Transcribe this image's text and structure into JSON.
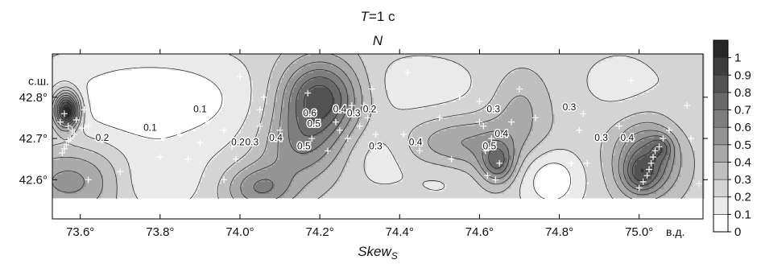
{
  "chart_data": {
    "type": "heatmap",
    "title_italic": "T",
    "title_rest": "=1 c",
    "subtitle": "N",
    "xlabel_main": "Skew",
    "xlabel_sub": "S",
    "x_unit": "в.д.",
    "y_unit": "с.ш.",
    "xlim": [
      73.53,
      75.16
    ],
    "ylim": [
      42.505,
      42.905
    ],
    "x_ticks": [
      73.6,
      73.8,
      74.0,
      74.2,
      74.4,
      74.6,
      74.8,
      75.0
    ],
    "x_tick_labels": [
      "73.6°",
      "73.8°",
      "74.0°",
      "74.2°",
      "74.4°",
      "74.6°",
      "74.8°",
      "75.0°"
    ],
    "y_ticks": [
      42.8,
      42.7,
      42.6
    ],
    "y_tick_labels": [
      "42.8°",
      "42.7°",
      "42.6°"
    ],
    "data_ylim": [
      42.555,
      42.905
    ],
    "colorbar": {
      "ticks": [
        0,
        0.1,
        0.2,
        0.3,
        0.4,
        0.5,
        0.6,
        0.7,
        0.8,
        0.9,
        1
      ],
      "tick_labels": [
        "0",
        "0.1",
        "0.2",
        "0.3",
        "0.4",
        "0.5",
        "0.6",
        "0.7",
        "0.8",
        "0.9",
        "1"
      ],
      "range": [
        0,
        1.1
      ]
    },
    "field": {
      "background": 0.26,
      "features": [
        {
          "x": 73.565,
          "y": 42.77,
          "amp": 0.95,
          "sx": 0.022,
          "sy": 0.03
        },
        {
          "x": 73.585,
          "y": 42.6,
          "amp": 0.3,
          "sx": 0.1,
          "sy": 0.06
        },
        {
          "x": 73.76,
          "y": 42.79,
          "amp": -0.24,
          "sx": 0.2,
          "sy": 0.09
        },
        {
          "x": 73.77,
          "y": 42.595,
          "amp": -0.16,
          "sx": 0.09,
          "sy": 0.055
        },
        {
          "x": 73.86,
          "y": 42.8,
          "amp": -0.05,
          "sx": 0.06,
          "sy": 0.035
        },
        {
          "x": 74.2,
          "y": 42.8,
          "amp": 0.62,
          "sx": 0.07,
          "sy": 0.065
        },
        {
          "x": 74.15,
          "y": 42.68,
          "amp": 0.3,
          "sx": 0.07,
          "sy": 0.06
        },
        {
          "x": 74.05,
          "y": 42.58,
          "amp": 0.34,
          "sx": 0.06,
          "sy": 0.04
        },
        {
          "x": 74.35,
          "y": 42.66,
          "amp": -0.12,
          "sx": 0.06,
          "sy": 0.06
        },
        {
          "x": 74.45,
          "y": 42.83,
          "amp": -0.12,
          "sx": 0.12,
          "sy": 0.06
        },
        {
          "x": 74.57,
          "y": 42.69,
          "amp": 0.25,
          "sx": 0.11,
          "sy": 0.045
        },
        {
          "x": 74.645,
          "y": 42.64,
          "amp": 0.4,
          "sx": 0.03,
          "sy": 0.035
        },
        {
          "x": 74.5,
          "y": 42.6,
          "amp": -0.08,
          "sx": 0.06,
          "sy": 0.04
        },
        {
          "x": 74.7,
          "y": 42.78,
          "amp": 0.16,
          "sx": 0.05,
          "sy": 0.06
        },
        {
          "x": 74.78,
          "y": 42.6,
          "amp": -0.24,
          "sx": 0.055,
          "sy": 0.055
        },
        {
          "x": 74.95,
          "y": 42.84,
          "amp": -0.1,
          "sx": 0.08,
          "sy": 0.06
        },
        {
          "x": 75.02,
          "y": 42.65,
          "amp": 0.48,
          "sx": 0.055,
          "sy": 0.06
        },
        {
          "x": 75.0,
          "y": 42.61,
          "amp": 0.25,
          "sx": 0.03,
          "sy": 0.03
        },
        {
          "x": 75.055,
          "y": 42.68,
          "amp": 0.2,
          "sx": 0.02,
          "sy": 0.02
        },
        {
          "x": 75.12,
          "y": 42.8,
          "amp": -0.05,
          "sx": 0.05,
          "sy": 0.08
        }
      ]
    },
    "contour_labels": [
      {
        "x": 73.655,
        "y": 42.7,
        "text": "0.2"
      },
      {
        "x": 73.775,
        "y": 42.725,
        "text": "0.1"
      },
      {
        "x": 73.9,
        "y": 42.77,
        "text": "0.1"
      },
      {
        "x": 73.995,
        "y": 42.69,
        "text": "0.2"
      },
      {
        "x": 74.03,
        "y": 42.69,
        "text": "0.3"
      },
      {
        "x": 74.09,
        "y": 42.7,
        "text": "0.4"
      },
      {
        "x": 74.175,
        "y": 42.76,
        "text": "0.6"
      },
      {
        "x": 74.185,
        "y": 42.735,
        "text": "0.5"
      },
      {
        "x": 74.16,
        "y": 42.68,
        "text": "0.5"
      },
      {
        "x": 74.25,
        "y": 42.77,
        "text": "0.4"
      },
      {
        "x": 74.285,
        "y": 42.76,
        "text": "0.3"
      },
      {
        "x": 74.325,
        "y": 42.77,
        "text": "0.2"
      },
      {
        "x": 74.34,
        "y": 42.68,
        "text": "0.3"
      },
      {
        "x": 74.44,
        "y": 42.69,
        "text": "0.4"
      },
      {
        "x": 74.635,
        "y": 42.77,
        "text": "0.3"
      },
      {
        "x": 74.655,
        "y": 42.71,
        "text": "0.4"
      },
      {
        "x": 74.625,
        "y": 42.68,
        "text": "0.5"
      },
      {
        "x": 74.825,
        "y": 42.775,
        "text": "0.3"
      },
      {
        "x": 74.905,
        "y": 42.7,
        "text": "0.3"
      },
      {
        "x": 74.97,
        "y": 42.7,
        "text": "0.4"
      }
    ],
    "stations": [
      [
        73.56,
        42.76
      ],
      [
        73.55,
        42.74
      ],
      [
        73.57,
        42.73
      ],
      [
        73.58,
        42.72
      ],
      [
        73.585,
        42.71
      ],
      [
        73.575,
        42.7
      ],
      [
        73.57,
        42.695
      ],
      [
        73.565,
        42.685
      ],
      [
        73.56,
        42.675
      ],
      [
        73.555,
        42.665
      ],
      [
        73.59,
        42.745
      ],
      [
        73.61,
        42.77
      ],
      [
        73.62,
        42.73
      ],
      [
        73.605,
        42.725
      ],
      [
        73.62,
        42.6
      ],
      [
        73.77,
        42.85
      ],
      [
        73.72,
        42.81
      ],
      [
        73.7,
        42.765
      ],
      [
        73.74,
        42.785
      ],
      [
        73.8,
        42.78
      ],
      [
        73.82,
        42.8
      ],
      [
        73.83,
        42.74
      ],
      [
        73.85,
        42.71
      ],
      [
        73.8,
        42.655
      ],
      [
        73.81,
        42.7
      ],
      [
        73.87,
        42.65
      ],
      [
        73.9,
        42.69
      ],
      [
        73.92,
        42.74
      ],
      [
        73.9,
        42.8
      ],
      [
        73.96,
        42.72
      ],
      [
        73.98,
        42.68
      ],
      [
        73.99,
        42.65
      ],
      [
        74.05,
        42.77
      ],
      [
        74.06,
        42.8
      ],
      [
        74.0,
        42.85
      ],
      [
        74.1,
        42.72
      ],
      [
        74.05,
        42.73
      ],
      [
        73.96,
        42.6
      ],
      [
        74.17,
        42.81
      ],
      [
        74.25,
        42.72
      ],
      [
        74.27,
        42.7
      ],
      [
        74.22,
        42.67
      ],
      [
        74.3,
        42.73
      ],
      [
        74.32,
        42.75
      ],
      [
        74.31,
        42.78
      ],
      [
        74.33,
        42.82
      ],
      [
        74.34,
        42.71
      ],
      [
        74.28,
        42.78
      ],
      [
        74.42,
        42.86
      ],
      [
        74.41,
        42.71
      ],
      [
        74.45,
        42.67
      ],
      [
        74.5,
        42.75
      ],
      [
        74.53,
        42.65
      ],
      [
        74.55,
        42.8
      ],
      [
        74.6,
        42.79
      ],
      [
        74.62,
        42.77
      ],
      [
        74.6,
        42.74
      ],
      [
        74.63,
        42.7
      ],
      [
        74.615,
        42.67
      ],
      [
        74.65,
        42.64
      ],
      [
        74.62,
        42.61
      ],
      [
        74.64,
        42.6
      ],
      [
        74.61,
        42.73
      ],
      [
        74.68,
        42.74
      ],
      [
        74.7,
        42.82
      ],
      [
        74.74,
        42.75
      ],
      [
        74.85,
        42.72
      ],
      [
        74.86,
        42.76
      ],
      [
        74.83,
        42.64
      ],
      [
        74.87,
        42.64
      ],
      [
        74.95,
        42.73
      ],
      [
        74.98,
        42.84
      ],
      [
        75.0,
        42.58
      ],
      [
        75.01,
        42.595
      ],
      [
        75.02,
        42.61
      ],
      [
        75.025,
        42.625
      ],
      [
        75.03,
        42.64
      ],
      [
        75.035,
        42.655
      ],
      [
        75.04,
        42.67
      ],
      [
        75.05,
        42.68
      ],
      [
        75.06,
        42.7
      ],
      [
        75.075,
        42.72
      ],
      [
        75.13,
        42.7
      ],
      [
        75.15,
        42.59
      ],
      [
        75.12,
        42.78
      ],
      [
        73.7,
        42.62
      ],
      [
        74.18,
        42.7
      ],
      [
        74.24,
        42.74
      ]
    ]
  }
}
